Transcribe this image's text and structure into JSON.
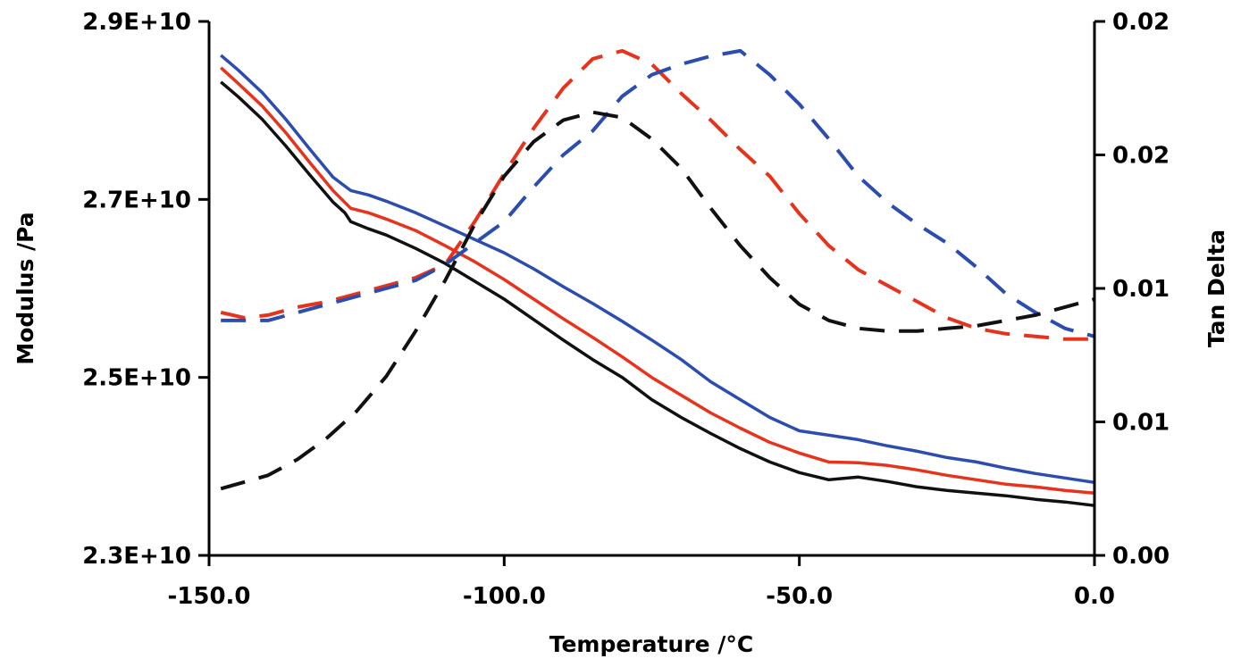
{
  "chart_data": {
    "type": "line",
    "title": "",
    "xlabel": "Temperature /°C",
    "ylabel": "Modulus /Pa",
    "y2label": "Tan Delta",
    "xlim": [
      -150,
      0
    ],
    "ylim": [
      23000000000.0,
      29000000000.0
    ],
    "y2lim": [
      0.0,
      0.02
    ],
    "x_ticks": [
      -150,
      -100,
      -50,
      0
    ],
    "x_tick_labels": [
      "-150.0",
      "-100.0",
      "-50.0",
      "0.0"
    ],
    "y_ticks": [
      23000000000.0,
      25000000000.0,
      27000000000.0,
      29000000000.0
    ],
    "y_tick_labels": [
      "2.3E+10",
      "2.5E+10",
      "2.7E+10",
      "2.9E+10"
    ],
    "y2_ticks": [
      0.0,
      0.005,
      0.01,
      0.015,
      0.02
    ],
    "y2_tick_labels": [
      "0.00",
      "0.01",
      "0.01",
      "0.02",
      "0.02"
    ],
    "grid": false,
    "legend": "none",
    "series": [
      {
        "name": "modulus-blue",
        "color": "#2b4db0",
        "dash": "solid",
        "axis": "left",
        "x": [
          -148,
          -145,
          -141,
          -137,
          -133,
          -129,
          -126,
          -123,
          -120,
          -115,
          -110,
          -105,
          -100,
          -95,
          -90,
          -85,
          -80,
          -75,
          -70,
          -65,
          -60,
          -55,
          -50,
          -45,
          -40,
          -35,
          -30,
          -25,
          -20,
          -15,
          -10,
          -5,
          0
        ],
        "y": [
          28620000000.0,
          28450000000.0,
          28200000000.0,
          27900000000.0,
          27570000000.0,
          27250000000.0,
          27100000000.0,
          27050000000.0,
          26980000000.0,
          26850000000.0,
          26700000000.0,
          26550000000.0,
          26400000000.0,
          26220000000.0,
          26020000000.0,
          25830000000.0,
          25630000000.0,
          25420000000.0,
          25200000000.0,
          24950000000.0,
          24750000000.0,
          24550000000.0,
          24400000000.0,
          24350000000.0,
          24300000000.0,
          24230000000.0,
          24170000000.0,
          24100000000.0,
          24050000000.0,
          23980000000.0,
          23920000000.0,
          23870000000.0,
          23820000000.0
        ]
      },
      {
        "name": "modulus-red",
        "color": "#e8331c",
        "dash": "solid",
        "axis": "left",
        "x": [
          -148,
          -145,
          -141,
          -137,
          -133,
          -129,
          -126,
          -123,
          -120,
          -115,
          -110,
          -105,
          -100,
          -95,
          -90,
          -85,
          -80,
          -75,
          -70,
          -65,
          -60,
          -55,
          -50,
          -45,
          -40,
          -35,
          -30,
          -25,
          -20,
          -15,
          -10,
          -5,
          0
        ],
        "y": [
          28480000000.0,
          28300000000.0,
          28050000000.0,
          27750000000.0,
          27420000000.0,
          27100000000.0,
          26900000000.0,
          26850000000.0,
          26780000000.0,
          26650000000.0,
          26480000000.0,
          26300000000.0,
          26100000000.0,
          25880000000.0,
          25660000000.0,
          25450000000.0,
          25230000000.0,
          25000000000.0,
          24800000000.0,
          24600000000.0,
          24430000000.0,
          24270000000.0,
          24150000000.0,
          24050000000.0,
          24040000000.0,
          24010000000.0,
          23960000000.0,
          23900000000.0,
          23850000000.0,
          23800000000.0,
          23770000000.0,
          23730000000.0,
          23700000000.0
        ]
      },
      {
        "name": "modulus-black",
        "color": "#111111",
        "dash": "solid",
        "axis": "left",
        "x": [
          -148,
          -145,
          -141,
          -137,
          -133,
          -129,
          -127,
          -126,
          -123,
          -120,
          -115,
          -110,
          -105,
          -100,
          -95,
          -90,
          -85,
          -80,
          -75,
          -70,
          -65,
          -60,
          -55,
          -50,
          -45,
          -40,
          -35,
          -30,
          -25,
          -20,
          -15,
          -10,
          -5,
          0
        ],
        "y": [
          28320000000.0,
          28150000000.0,
          27900000000.0,
          27600000000.0,
          27280000000.0,
          26970000000.0,
          26850000000.0,
          26750000000.0,
          26670000000.0,
          26600000000.0,
          26450000000.0,
          26280000000.0,
          26080000000.0,
          25880000000.0,
          25650000000.0,
          25420000000.0,
          25200000000.0,
          25000000000.0,
          24750000000.0,
          24550000000.0,
          24370000000.0,
          24200000000.0,
          24050000000.0,
          23930000000.0,
          23850000000.0,
          23880000000.0,
          23830000000.0,
          23770000000.0,
          23730000000.0,
          23700000000.0,
          23670000000.0,
          23630000000.0,
          23600000000.0,
          23560000000.0
        ]
      },
      {
        "name": "tandelta-red",
        "color": "#e8331c",
        "dash": "dashed",
        "axis": "right",
        "x": [
          -148,
          -144,
          -140,
          -135,
          -130,
          -125,
          -120,
          -115,
          -110,
          -105,
          -100,
          -95,
          -90,
          -85,
          -80,
          -75,
          -70,
          -65,
          -60,
          -55,
          -50,
          -45,
          -40,
          -35,
          -30,
          -25,
          -20,
          -15,
          -10,
          -5,
          0
        ],
        "y": [
          0.0091,
          0.0089,
          0.009,
          0.0093,
          0.0095,
          0.0098,
          0.0101,
          0.0104,
          0.0109,
          0.0125,
          0.0143,
          0.016,
          0.0175,
          0.0186,
          0.0189,
          0.0184,
          0.0173,
          0.0163,
          0.0152,
          0.0142,
          0.0128,
          0.0116,
          0.0107,
          0.0101,
          0.0095,
          0.0089,
          0.0085,
          0.0083,
          0.0082,
          0.0081,
          0.0081
        ]
      },
      {
        "name": "tandelta-blue",
        "color": "#2b4db0",
        "dash": "dashed",
        "axis": "right",
        "x": [
          -148,
          -144,
          -140,
          -135,
          -130,
          -125,
          -120,
          -115,
          -110,
          -105,
          -100,
          -95,
          -90,
          -85,
          -80,
          -75,
          -70,
          -65,
          -60,
          -55,
          -50,
          -45,
          -40,
          -35,
          -30,
          -25,
          -20,
          -15,
          -10,
          -5,
          0
        ],
        "y": [
          0.0088,
          0.0088,
          0.0088,
          0.0091,
          0.0094,
          0.0097,
          0.01,
          0.0103,
          0.0109,
          0.0117,
          0.0125,
          0.0138,
          0.015,
          0.0159,
          0.0172,
          0.018,
          0.0184,
          0.0187,
          0.0189,
          0.018,
          0.0169,
          0.0156,
          0.0142,
          0.0132,
          0.0124,
          0.0117,
          0.0108,
          0.0098,
          0.0091,
          0.0085,
          0.0082
        ]
      },
      {
        "name": "tandelta-black",
        "color": "#111111",
        "dash": "dashed",
        "axis": "right",
        "x": [
          -148,
          -140,
          -135,
          -130,
          -125,
          -120,
          -115,
          -110,
          -105,
          -100,
          -95,
          -90,
          -85,
          -80,
          -75,
          -70,
          -65,
          -60,
          -55,
          -50,
          -45,
          -40,
          -35,
          -30,
          -25,
          -20,
          -15,
          -10,
          -5,
          0
        ],
        "y": [
          0.0025,
          0.003,
          0.0036,
          0.0044,
          0.0054,
          0.0067,
          0.0084,
          0.0103,
          0.0124,
          0.0142,
          0.0155,
          0.0163,
          0.0166,
          0.0164,
          0.0156,
          0.0145,
          0.013,
          0.0116,
          0.0104,
          0.0094,
          0.0088,
          0.0085,
          0.0084,
          0.0084,
          0.0085,
          0.0086,
          0.0088,
          0.009,
          0.0093,
          0.0096
        ]
      }
    ]
  }
}
